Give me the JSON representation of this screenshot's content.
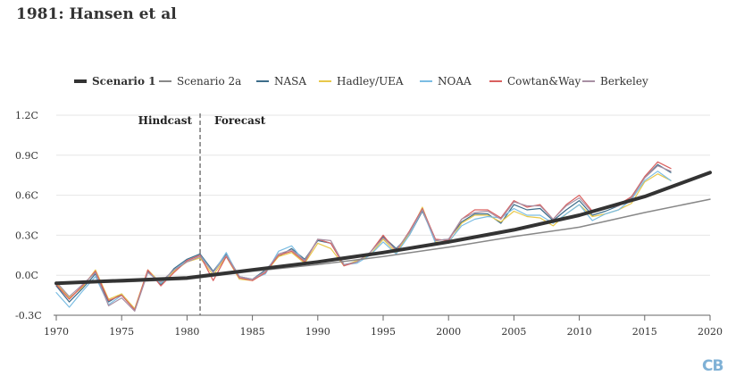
{
  "title": "1981: Hansen et al",
  "logo_text": "CB",
  "chart_data": {
    "type": "line",
    "title": "",
    "xlabel": "",
    "ylabel": "",
    "xlim": [
      1970,
      2020
    ],
    "ylim": [
      -0.3,
      1.2
    ],
    "x_ticks": [
      1970,
      1975,
      1980,
      1985,
      1990,
      1995,
      2000,
      2005,
      2010,
      2015,
      2020
    ],
    "y_ticks": [
      -0.3,
      0.0,
      0.3,
      0.6,
      0.9,
      1.2
    ],
    "y_tick_labels": [
      "-0.3C",
      "0.0C",
      "0.3C",
      "0.6C",
      "0.9C",
      "1.2C"
    ],
    "grid": "horizontal",
    "legend_position": "top",
    "annotations": [
      {
        "text": "Hindcast",
        "x": 1981,
        "side": "left"
      },
      {
        "text": "Forecast",
        "x": 1981,
        "side": "right"
      }
    ],
    "divider_x": 1981,
    "series": [
      {
        "name": "Scenario 1",
        "color": "#333333",
        "width": 4,
        "x": [
          1970,
          1975,
          1980,
          1985,
          1990,
          1995,
          2000,
          2005,
          2010,
          2015,
          2020
        ],
        "values": [
          -0.06,
          -0.04,
          -0.02,
          0.04,
          0.1,
          0.17,
          0.25,
          0.34,
          0.45,
          0.59,
          0.77
        ]
      },
      {
        "name": "Scenario 2a",
        "color": "#888888",
        "width": 1.5,
        "x": [
          1970,
          1975,
          1980,
          1985,
          1990,
          1995,
          2000,
          2005,
          2010,
          2015,
          2020
        ],
        "values": [
          -0.06,
          -0.05,
          -0.03,
          0.03,
          0.08,
          0.14,
          0.21,
          0.29,
          0.36,
          0.47,
          0.57
        ]
      },
      {
        "name": "NASA",
        "color": "#3d6d8a",
        "width": 1.2,
        "x": [
          1970,
          1971,
          1972,
          1973,
          1974,
          1975,
          1976,
          1977,
          1978,
          1979,
          1980,
          1981,
          1982,
          1983,
          1984,
          1985,
          1986,
          1987,
          1988,
          1989,
          1990,
          1991,
          1992,
          1993,
          1994,
          1995,
          1996,
          1997,
          1998,
          1999,
          2000,
          2001,
          2002,
          2003,
          2004,
          2005,
          2006,
          2007,
          2008,
          2009,
          2010,
          2011,
          2012,
          2013,
          2014,
          2015,
          2016,
          2017
        ],
        "values": [
          -0.08,
          -0.2,
          -0.1,
          0.01,
          -0.2,
          -0.14,
          -0.26,
          0.03,
          -0.07,
          0.05,
          0.12,
          0.16,
          0.03,
          0.16,
          -0.01,
          -0.03,
          0.04,
          0.14,
          0.2,
          0.12,
          0.26,
          0.24,
          0.08,
          0.1,
          0.17,
          0.29,
          0.2,
          0.3,
          0.48,
          0.26,
          0.27,
          0.4,
          0.46,
          0.46,
          0.39,
          0.53,
          0.49,
          0.5,
          0.41,
          0.49,
          0.56,
          0.45,
          0.48,
          0.52,
          0.59,
          0.73,
          0.83,
          0.77
        ]
      },
      {
        "name": "Hadley/UEA",
        "color": "#e8c84a",
        "width": 1.2,
        "x": [
          1970,
          1971,
          1972,
          1973,
          1974,
          1975,
          1976,
          1977,
          1978,
          1979,
          1980,
          1981,
          1982,
          1983,
          1984,
          1985,
          1986,
          1987,
          1988,
          1989,
          1990,
          1991,
          1992,
          1993,
          1994,
          1995,
          1996,
          1997,
          1998,
          1999,
          2000,
          2001,
          2002,
          2003,
          2004,
          2005,
          2006,
          2007,
          2008,
          2009,
          2010,
          2011,
          2012,
          2013,
          2014,
          2015,
          2016,
          2017
        ],
        "values": [
          -0.06,
          -0.17,
          -0.09,
          0.04,
          -0.18,
          -0.14,
          -0.25,
          0.04,
          -0.06,
          0.03,
          0.1,
          0.13,
          0.0,
          0.14,
          -0.03,
          -0.04,
          0.02,
          0.14,
          0.17,
          0.09,
          0.24,
          0.2,
          0.07,
          0.11,
          0.15,
          0.27,
          0.17,
          0.31,
          0.51,
          0.25,
          0.24,
          0.39,
          0.45,
          0.45,
          0.4,
          0.48,
          0.44,
          0.43,
          0.37,
          0.46,
          0.53,
          0.44,
          0.46,
          0.49,
          0.54,
          0.7,
          0.76,
          0.71
        ]
      },
      {
        "name": "NOAA",
        "color": "#7bbde3",
        "width": 1.2,
        "x": [
          1970,
          1971,
          1972,
          1973,
          1974,
          1975,
          1976,
          1977,
          1978,
          1979,
          1980,
          1981,
          1982,
          1983,
          1984,
          1985,
          1986,
          1987,
          1988,
          1989,
          1990,
          1991,
          1992,
          1993,
          1994,
          1995,
          1996,
          1997,
          1998,
          1999,
          2000,
          2001,
          2002,
          2003,
          2004,
          2005,
          2006,
          2007,
          2008,
          2009,
          2010,
          2011,
          2012,
          2013,
          2014,
          2015,
          2016,
          2017
        ],
        "values": [
          -0.13,
          -0.24,
          -0.12,
          -0.01,
          -0.22,
          -0.15,
          -0.26,
          0.02,
          -0.06,
          0.04,
          0.11,
          0.15,
          0.02,
          0.17,
          -0.02,
          -0.03,
          0.01,
          0.18,
          0.22,
          0.1,
          0.27,
          0.24,
          0.08,
          0.09,
          0.15,
          0.25,
          0.16,
          0.3,
          0.49,
          0.24,
          0.25,
          0.37,
          0.42,
          0.44,
          0.43,
          0.5,
          0.45,
          0.45,
          0.39,
          0.46,
          0.53,
          0.41,
          0.46,
          0.49,
          0.57,
          0.71,
          0.78,
          0.71
        ]
      },
      {
        "name": "Cowtan&Way",
        "color": "#d9605f",
        "width": 1.2,
        "x": [
          1970,
          1971,
          1972,
          1973,
          1974,
          1975,
          1976,
          1977,
          1978,
          1979,
          1980,
          1981,
          1982,
          1983,
          1984,
          1985,
          1986,
          1987,
          1988,
          1989,
          1990,
          1991,
          1992,
          1993,
          1994,
          1995,
          1996,
          1997,
          1998,
          1999,
          2000,
          2001,
          2002,
          2003,
          2004,
          2005,
          2006,
          2007,
          2008,
          2009,
          2010,
          2011,
          2012,
          2013,
          2014,
          2015,
          2016,
          2017
        ],
        "values": [
          -0.07,
          -0.18,
          -0.08,
          0.03,
          -0.19,
          -0.15,
          -0.26,
          0.04,
          -0.08,
          0.02,
          0.11,
          0.15,
          -0.04,
          0.14,
          -0.02,
          -0.04,
          0.02,
          0.15,
          0.18,
          0.1,
          0.27,
          0.24,
          0.07,
          0.1,
          0.17,
          0.3,
          0.18,
          0.33,
          0.5,
          0.27,
          0.26,
          0.42,
          0.49,
          0.49,
          0.43,
          0.56,
          0.51,
          0.53,
          0.42,
          0.53,
          0.6,
          0.48,
          0.51,
          0.53,
          0.59,
          0.74,
          0.85,
          0.8
        ]
      },
      {
        "name": "Berkeley",
        "color": "#a890a4",
        "width": 1.2,
        "x": [
          1970,
          1971,
          1972,
          1973,
          1974,
          1975,
          1976,
          1977,
          1978,
          1979,
          1980,
          1981,
          1982,
          1983,
          1984,
          1985,
          1986,
          1987,
          1988,
          1989,
          1990,
          1991,
          1992,
          1993,
          1994,
          1995,
          1996,
          1997,
          1998,
          1999,
          2000,
          2001,
          2002,
          2003,
          2004,
          2005,
          2006,
          2007,
          2008,
          2009,
          2010,
          2011,
          2012,
          2013,
          2014,
          2015,
          2016,
          2017
        ],
        "values": [
          -0.05,
          -0.16,
          -0.07,
          0.02,
          -0.23,
          -0.17,
          -0.27,
          0.02,
          -0.05,
          0.04,
          0.1,
          0.14,
          0.02,
          0.15,
          -0.01,
          -0.03,
          0.03,
          0.16,
          0.19,
          0.11,
          0.27,
          0.26,
          0.08,
          0.1,
          0.17,
          0.28,
          0.19,
          0.32,
          0.49,
          0.26,
          0.27,
          0.42,
          0.47,
          0.48,
          0.42,
          0.55,
          0.52,
          0.52,
          0.42,
          0.52,
          0.58,
          0.47,
          0.5,
          0.52,
          0.58,
          0.73,
          0.82,
          0.78
        ]
      }
    ]
  }
}
